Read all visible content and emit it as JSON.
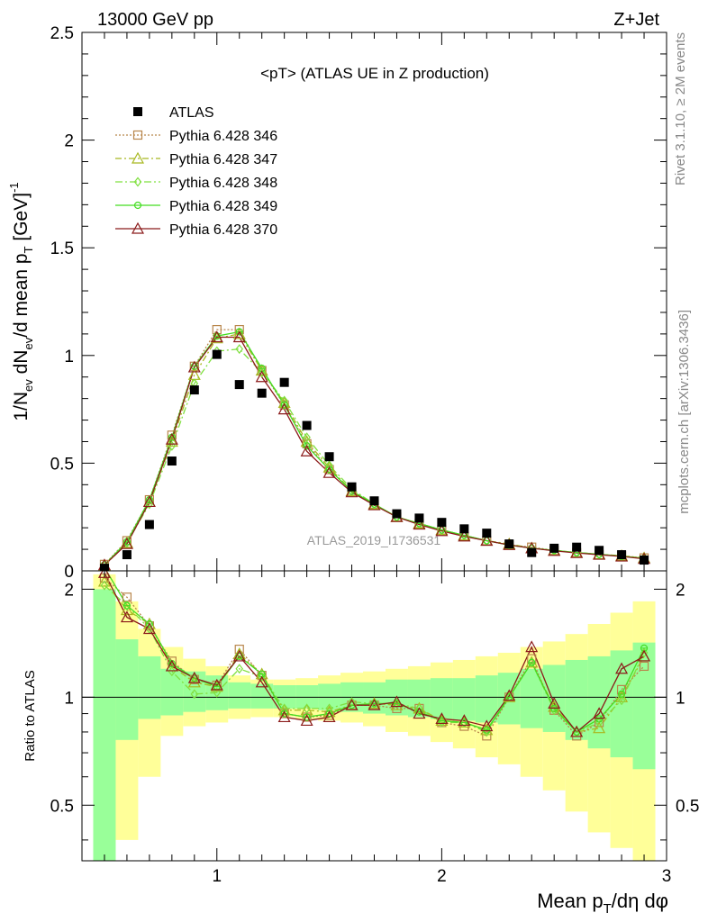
{
  "header": {
    "left": "13000 GeV pp",
    "right": "Z+Jet"
  },
  "side": {
    "rivet": "Rivet 3.1.10, ≥ 2M events",
    "mcplots": "mcplots.cern.ch [arXiv:1306.3436]"
  },
  "chart_data": [
    {
      "type": "scatter",
      "panel": "main",
      "title": "<pT> (ATLAS UE in Z production)",
      "ylabel": "1/N_ev dN_ev/d mean p_T [GeV]^-1",
      "xlim": [
        0.4,
        3.0
      ],
      "ylim": [
        0,
        2.5
      ],
      "yticks": [
        "0",
        "0.5",
        "1",
        "1.5",
        "2",
        "2.5"
      ],
      "watermark": "ATLAS_2019_I1736531",
      "legend_position": "top-left",
      "x": [
        0.5,
        0.6,
        0.7,
        0.8,
        0.9,
        1.0,
        1.1,
        1.2,
        1.3,
        1.4,
        1.5,
        1.6,
        1.7,
        1.8,
        1.9,
        2.0,
        2.1,
        2.2,
        2.3,
        2.4,
        2.5,
        2.6,
        2.7,
        2.8,
        2.9
      ],
      "series": [
        {
          "name": "ATLAS",
          "color": "#000000",
          "marker": "square-filled",
          "values": [
            0.012,
            0.075,
            0.215,
            0.51,
            0.84,
            1.005,
            0.865,
            0.825,
            0.875,
            0.675,
            0.53,
            0.39,
            0.325,
            0.265,
            0.245,
            0.225,
            0.195,
            0.175,
            0.125,
            0.085,
            0.105,
            0.11,
            0.095,
            0.075,
            0.05
          ]
        },
        {
          "name": "Pythia 6.428 346",
          "color": "#b8864b",
          "marker": "square-open",
          "dash": "2,2",
          "values": [
            0.03,
            0.14,
            0.33,
            0.63,
            0.95,
            1.12,
            1.12,
            0.93,
            0.77,
            0.59,
            0.47,
            0.37,
            0.31,
            0.25,
            0.22,
            0.19,
            0.16,
            0.14,
            0.12,
            0.11,
            0.095,
            0.085,
            0.075,
            0.07,
            0.06
          ]
        },
        {
          "name": "Pythia 6.428 347",
          "color": "#a8b820",
          "marker": "triangle-open",
          "dash": "7,3,2,3",
          "values": [
            0.025,
            0.13,
            0.32,
            0.6,
            0.91,
            1.08,
            1.1,
            0.93,
            0.78,
            0.6,
            0.48,
            0.37,
            0.31,
            0.25,
            0.22,
            0.19,
            0.165,
            0.14,
            0.125,
            0.105,
            0.095,
            0.085,
            0.077,
            0.07,
            0.06
          ]
        },
        {
          "name": "Pythia 6.428 348",
          "color": "#80e040",
          "marker": "diamond-open",
          "dash": "8,3,2,3",
          "values": [
            0.025,
            0.13,
            0.31,
            0.58,
            0.87,
            1.02,
            1.03,
            0.92,
            0.79,
            0.62,
            0.49,
            0.38,
            0.31,
            0.25,
            0.22,
            0.19,
            0.165,
            0.14,
            0.12,
            0.105,
            0.095,
            0.085,
            0.077,
            0.068,
            0.058
          ]
        },
        {
          "name": "Pythia 6.428 349",
          "color": "#44dd22",
          "marker": "circle-open-plus",
          "dash": "",
          "values": [
            0.028,
            0.135,
            0.33,
            0.62,
            0.95,
            1.09,
            1.11,
            0.94,
            0.77,
            0.58,
            0.47,
            0.37,
            0.31,
            0.25,
            0.22,
            0.19,
            0.165,
            0.14,
            0.12,
            0.105,
            0.095,
            0.085,
            0.077,
            0.068,
            0.058
          ]
        },
        {
          "name": "Pythia 6.428 370",
          "color": "#8b1a1a",
          "marker": "triangle-open",
          "dash": "",
          "values": [
            0.027,
            0.125,
            0.32,
            0.61,
            0.945,
            1.085,
            1.085,
            0.9,
            0.75,
            0.555,
            0.455,
            0.365,
            0.305,
            0.25,
            0.215,
            0.185,
            0.16,
            0.14,
            0.12,
            0.105,
            0.093,
            0.083,
            0.075,
            0.067,
            0.056
          ]
        }
      ]
    },
    {
      "type": "line",
      "panel": "ratio",
      "ylabel": "Ratio to ATLAS",
      "xlabel": "Mean p_T/dη dφ",
      "xlim": [
        0.4,
        3.0
      ],
      "ylim": [
        0.35,
        2.25
      ],
      "xticks": [
        "1",
        "2",
        "3"
      ],
      "yticks": [
        "0.5",
        "1",
        "2"
      ],
      "bands": {
        "green": [
          [
            0.35,
            2.0
          ],
          [
            0.76,
            1.45
          ],
          [
            0.87,
            1.3
          ],
          [
            0.89,
            1.2
          ],
          [
            0.91,
            1.18
          ],
          [
            0.92,
            1.15
          ],
          [
            0.93,
            1.1
          ],
          [
            0.93,
            1.09
          ],
          [
            0.93,
            1.08
          ],
          [
            0.93,
            1.08
          ],
          [
            0.92,
            1.09
          ],
          [
            0.91,
            1.1
          ],
          [
            0.9,
            1.1
          ],
          [
            0.89,
            1.12
          ],
          [
            0.88,
            1.12
          ],
          [
            0.87,
            1.13
          ],
          [
            0.86,
            1.13
          ],
          [
            0.85,
            1.15
          ],
          [
            0.84,
            1.17
          ],
          [
            0.82,
            1.2
          ],
          [
            0.8,
            1.23
          ],
          [
            0.76,
            1.27
          ],
          [
            0.72,
            1.3
          ],
          [
            0.68,
            1.35
          ],
          [
            0.63,
            1.42
          ]
        ],
        "yellow": [
          [
            0.35,
            2.2
          ],
          [
            0.4,
            1.85
          ],
          [
            0.6,
            1.55
          ],
          [
            0.78,
            1.38
          ],
          [
            0.83,
            1.28
          ],
          [
            0.85,
            1.22
          ],
          [
            0.87,
            1.15
          ],
          [
            0.88,
            1.12
          ],
          [
            0.88,
            1.12
          ],
          [
            0.87,
            1.13
          ],
          [
            0.86,
            1.15
          ],
          [
            0.85,
            1.17
          ],
          [
            0.83,
            1.18
          ],
          [
            0.8,
            1.2
          ],
          [
            0.78,
            1.22
          ],
          [
            0.75,
            1.25
          ],
          [
            0.72,
            1.27
          ],
          [
            0.68,
            1.3
          ],
          [
            0.65,
            1.33
          ],
          [
            0.6,
            1.38
          ],
          [
            0.55,
            1.43
          ],
          [
            0.48,
            1.5
          ],
          [
            0.42,
            1.6
          ],
          [
            0.38,
            1.72
          ],
          [
            0.35,
            1.85
          ]
        ]
      },
      "series": [
        {
          "name": "Pythia 6.428 346",
          "values": [
            2.15,
            1.9,
            1.58,
            1.26,
            1.12,
            1.08,
            1.36,
            1.15,
            0.9,
            0.88,
            0.89,
            0.95,
            0.95,
            0.93,
            0.93,
            0.85,
            0.83,
            0.78,
            1.0,
            1.28,
            0.92,
            0.78,
            0.85,
            1.05,
            1.22
          ]
        },
        {
          "name": "Pythia 6.428 347",
          "values": [
            2.1,
            1.75,
            1.6,
            1.22,
            1.1,
            1.07,
            1.32,
            1.16,
            0.92,
            0.92,
            0.91,
            0.95,
            0.96,
            0.95,
            0.93,
            0.86,
            0.85,
            0.81,
            1.0,
            1.25,
            0.94,
            0.8,
            0.82,
            1.0,
            1.3
          ]
        },
        {
          "name": "Pythia 6.428 348",
          "values": [
            2.05,
            1.8,
            1.55,
            1.18,
            1.02,
            1.03,
            1.2,
            1.14,
            0.93,
            0.93,
            0.93,
            0.97,
            0.96,
            0.96,
            0.93,
            0.85,
            0.85,
            0.8,
            1.0,
            1.25,
            0.92,
            0.8,
            0.85,
            0.98,
            1.33
          ]
        },
        {
          "name": "Pythia 6.428 349",
          "values": [
            2.3,
            1.8,
            1.6,
            1.24,
            1.13,
            1.07,
            1.3,
            1.16,
            0.9,
            0.88,
            0.9,
            0.95,
            0.96,
            0.96,
            0.91,
            0.86,
            0.85,
            0.81,
            1.0,
            1.25,
            0.93,
            0.8,
            0.87,
            1.02,
            1.37
          ]
        },
        {
          "name": "Pythia 6.428 370",
          "values": [
            2.22,
            1.67,
            1.55,
            1.22,
            1.13,
            1.08,
            1.3,
            1.1,
            0.88,
            0.86,
            0.88,
            0.95,
            0.95,
            0.97,
            0.9,
            0.87,
            0.86,
            0.83,
            1.01,
            1.38,
            0.96,
            0.8,
            0.9,
            1.2,
            1.3
          ]
        }
      ]
    }
  ]
}
